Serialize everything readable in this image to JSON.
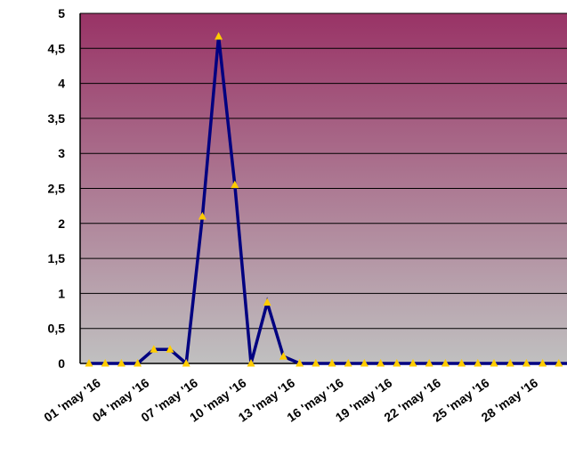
{
  "chart_data": {
    "type": "line",
    "title": "",
    "xlabel": "",
    "ylabel": "",
    "ylim": [
      0,
      5
    ],
    "y_ticks": [
      "0",
      "0,5",
      "1",
      "1,5",
      "2",
      "2,5",
      "3",
      "3,5",
      "4",
      "4,5",
      "5"
    ],
    "y_tick_values": [
      0,
      0.5,
      1,
      1.5,
      2,
      2.5,
      3,
      3.5,
      4,
      4.5,
      5
    ],
    "x": [
      "01 'may '16",
      "02 'may '16",
      "03 'may '16",
      "04 'may '16",
      "05 'may '16",
      "06 'may '16",
      "07 'may '16",
      "08 'may '16",
      "09 'may '16",
      "10 'may '16",
      "11 'may '16",
      "12 'may '16",
      "13 'may '16",
      "14 'may '16",
      "15 'may '16",
      "16 'may '16",
      "17 'may '16",
      "18 'may '16",
      "19 'may '16",
      "20 'may '16",
      "21 'may '16",
      "22 'may '16",
      "23 'may '16",
      "24 'may '16",
      "25 'may '16",
      "26 'may '16",
      "27 'may '16",
      "28 'may '16",
      "29 'may '16",
      "30 'may '16",
      "31 'may '16"
    ],
    "x_tick_labels": [
      "01 'may '16",
      "04 'may '16",
      "07 'may '16",
      "10 'may '16",
      "13 'may '16",
      "16 'may '16",
      "19 'may '16",
      "22 'may '16",
      "25 'may '16",
      "28 'may '16"
    ],
    "series": [
      {
        "values": [
          0,
          0,
          0,
          0,
          0.2,
          0.2,
          0,
          2.1,
          4.67,
          2.55,
          0,
          0.87,
          0.1,
          0,
          0,
          0,
          0,
          0,
          0,
          0,
          0,
          0,
          0,
          0,
          0,
          0,
          0,
          0,
          0,
          0,
          0
        ]
      }
    ],
    "grid": true,
    "legend": "none",
    "colors": {
      "line": "#000080",
      "marker": "#ffcc00",
      "background_top": "#993366",
      "background_bottom": "#c0c0c0",
      "gridline": "#000000"
    },
    "marker": "triangle"
  }
}
